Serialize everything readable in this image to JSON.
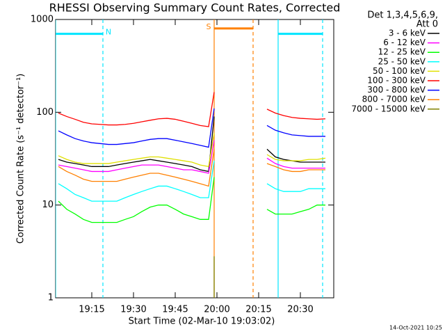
{
  "chart_data": {
    "type": "line",
    "title": "RHESSI Observing Summary Count Rates, Corrected",
    "x_label": "Start Time (02-Mar-10 19:03:02)",
    "y_label": "Corrected Count Rate (s⁻¹ detector⁻¹)",
    "legend_header": [
      "Det 1,3,4,5,6,9,",
      "Att 0"
    ],
    "timestamp": "14-Oct-2021 10:25",
    "log_y": true,
    "ylim": [
      1,
      1000
    ],
    "yticks": [
      1,
      10,
      100,
      1000
    ],
    "xlim": [
      "19:02",
      "20:42"
    ],
    "xticks": [
      "19:15",
      "19:30",
      "19:45",
      "20:00",
      "20:15",
      "20:30"
    ],
    "x": [
      "19:03",
      "19:06",
      "19:09",
      "19:12",
      "19:15",
      "19:18",
      "19:21",
      "19:24",
      "19:27",
      "19:30",
      "19:33",
      "19:36",
      "19:39",
      "19:42",
      "19:45",
      "19:48",
      "19:51",
      "19:54",
      "19:57",
      "19:59",
      "20:03",
      "20:06",
      "20:09",
      "20:12",
      "20:15",
      "20:18",
      "20:21",
      "20:24",
      "20:27",
      "20:30",
      "20:33",
      "20:36",
      "20:39"
    ],
    "series": [
      {
        "name": "3 - 6 keV",
        "color": "#000000",
        "values": [
          31,
          29,
          28,
          27,
          26,
          26,
          26,
          27,
          28,
          29,
          30,
          31,
          30,
          29,
          28,
          27,
          26,
          24,
          23,
          90,
          null,
          null,
          null,
          null,
          null,
          40,
          33,
          31,
          30,
          29,
          29,
          29,
          29
        ]
      },
      {
        "name": "6 - 12 keV",
        "color": "#ff00ff",
        "values": [
          27,
          26,
          25,
          24,
          23,
          23,
          23,
          24,
          25,
          26,
          27,
          27,
          27,
          26,
          25,
          24,
          24,
          23,
          22,
          50,
          null,
          null,
          null,
          null,
          null,
          32,
          28,
          26,
          25,
          25,
          25,
          25,
          25
        ]
      },
      {
        "name": "12 - 25 keV",
        "color": "#00ff00",
        "values": [
          11,
          9,
          8,
          7,
          6.5,
          6.5,
          6.5,
          6.5,
          7,
          7.5,
          8.5,
          9.5,
          10,
          10,
          9,
          8,
          7.5,
          7,
          7,
          20,
          null,
          null,
          null,
          null,
          null,
          9,
          8,
          8,
          8,
          8.5,
          9,
          10,
          10
        ]
      },
      {
        "name": "25 - 50 keV",
        "color": "#00ffff",
        "values": [
          17,
          15,
          13,
          12,
          11,
          11,
          11,
          11,
          12,
          13,
          14,
          15,
          16,
          16,
          15,
          14,
          13,
          12,
          12,
          30,
          null,
          null,
          null,
          null,
          null,
          17,
          15,
          14,
          14,
          14,
          15,
          15,
          15
        ]
      },
      {
        "name": "50 - 100 keV",
        "color": "#e0e000",
        "values": [
          34,
          31,
          29,
          28,
          28,
          28,
          28,
          29,
          30,
          31,
          32,
          33,
          33,
          32,
          31,
          30,
          29,
          27,
          26,
          60,
          null,
          null,
          null,
          null,
          null,
          35,
          31,
          30,
          30,
          30,
          31,
          31,
          32
        ]
      },
      {
        "name": "100 - 300 keV",
        "color": "#ff0000",
        "values": [
          98,
          90,
          84,
          78,
          75,
          74,
          73,
          73,
          74,
          76,
          79,
          82,
          85,
          86,
          84,
          80,
          76,
          72,
          70,
          165,
          null,
          null,
          null,
          null,
          null,
          108,
          98,
          92,
          88,
          86,
          85,
          84,
          85
        ]
      },
      {
        "name": "300 - 800 keV",
        "color": "#0000ff",
        "values": [
          63,
          57,
          52,
          49,
          47,
          46,
          45,
          45,
          46,
          47,
          49,
          51,
          52,
          52,
          50,
          48,
          46,
          44,
          42,
          110,
          null,
          null,
          null,
          null,
          null,
          72,
          64,
          60,
          57,
          56,
          55,
          55,
          55
        ]
      },
      {
        "name": "800 - 7000 keV",
        "color": "#ff8000",
        "values": [
          26,
          23,
          21,
          19,
          18,
          18,
          18,
          18,
          19,
          20,
          21,
          22,
          22,
          21,
          20,
          19,
          18,
          17,
          16,
          40,
          null,
          null,
          null,
          null,
          null,
          28,
          26,
          24,
          23,
          23,
          24,
          24,
          24
        ]
      },
      {
        "name": "7000 - 15000 keV",
        "color": "#808000",
        "values": [
          null,
          null,
          null,
          null,
          null,
          null,
          null,
          null,
          null,
          null,
          null,
          null,
          null,
          null,
          null,
          null,
          null,
          null,
          null,
          2.8,
          null,
          null,
          null,
          null,
          null,
          null,
          null,
          null,
          null,
          null,
          null,
          null,
          null
        ]
      }
    ],
    "intervals": [
      {
        "label": "N",
        "color": "#00e5ff",
        "start": "19:02",
        "end": "19:19",
        "level": 700
      },
      {
        "color": "#00e5ff",
        "start": "20:22",
        "end": "20:38",
        "level": 700
      },
      {
        "label": "S",
        "color": "#ff8000",
        "start": "19:59",
        "end": "20:13",
        "level": 800
      }
    ]
  }
}
